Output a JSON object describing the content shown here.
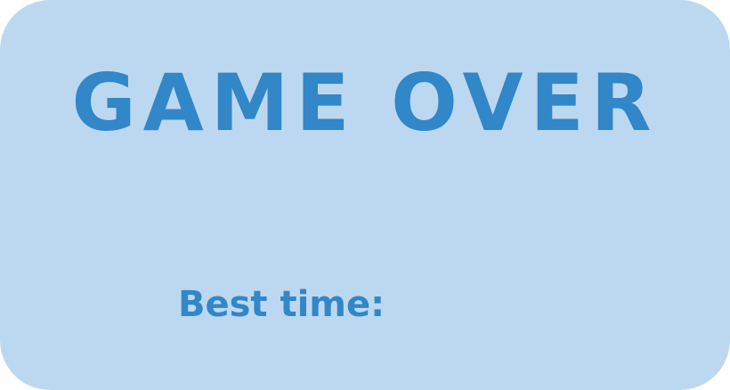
{
  "game_over": {
    "title": "GAME OVER",
    "best_time_label": "Best time:",
    "best_time_value": ""
  },
  "colors": {
    "panel_background": "#bcd8f1",
    "text": "#3187c7"
  }
}
